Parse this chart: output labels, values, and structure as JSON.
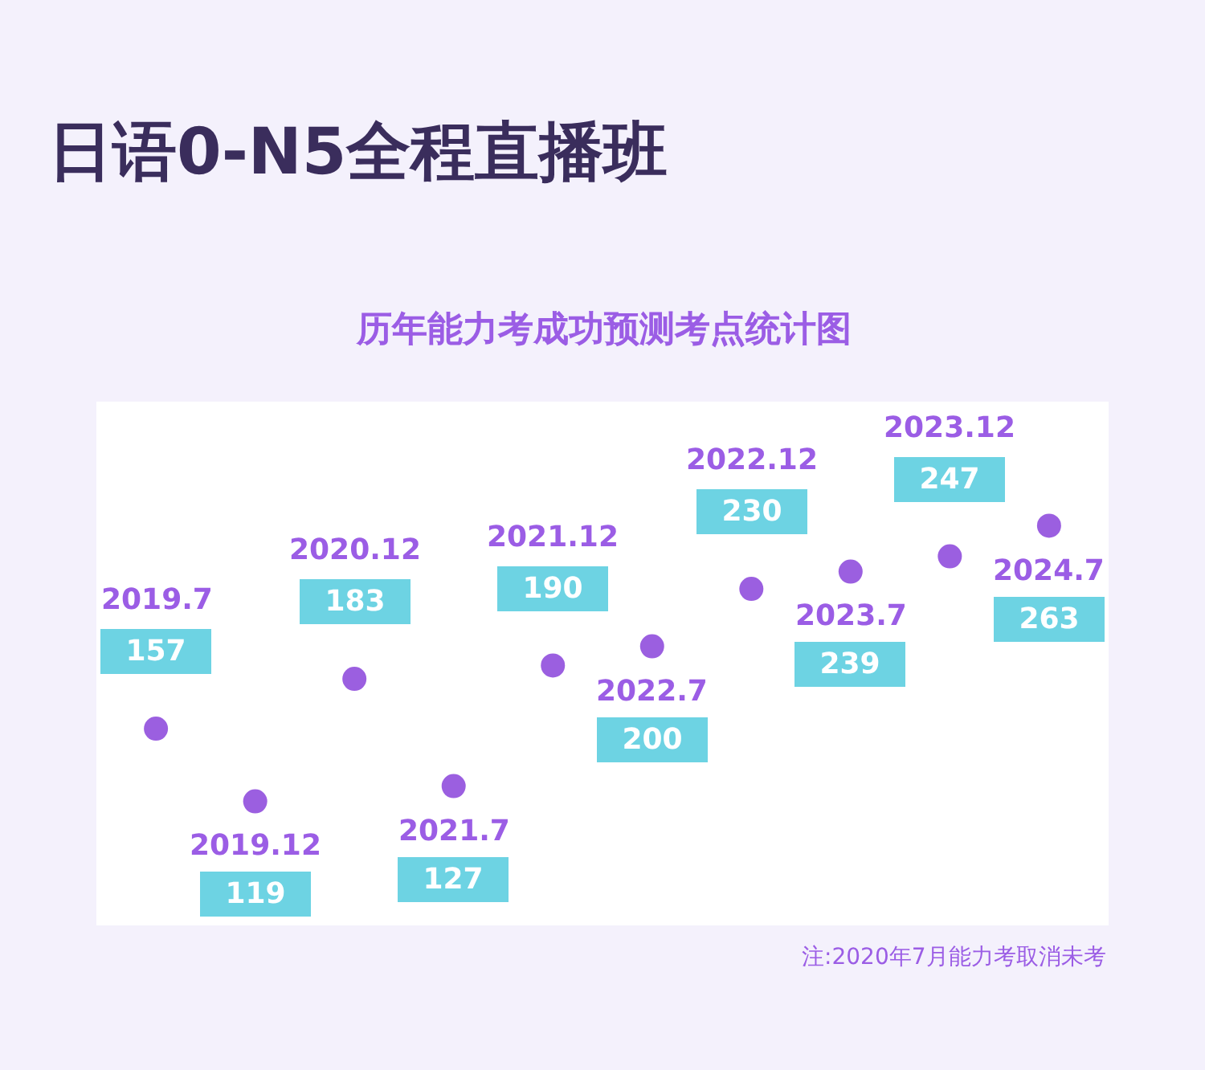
{
  "chart_data": {
    "type": "other",
    "title": "日语0-N5全程直播班",
    "subtitle": "历年能力考成功预测考点统计图",
    "categories": [
      "2019.7",
      "2019.12",
      "2020.12",
      "2021.7",
      "2021.12",
      "2022.7",
      "2022.12",
      "2023.7",
      "2023.12",
      "2024.7"
    ],
    "values": [
      157,
      119,
      183,
      127,
      190,
      200,
      230,
      239,
      247,
      263
    ],
    "data_labels": true,
    "annotations": [
      "注:2020年7月能力考取消未考"
    ]
  }
}
